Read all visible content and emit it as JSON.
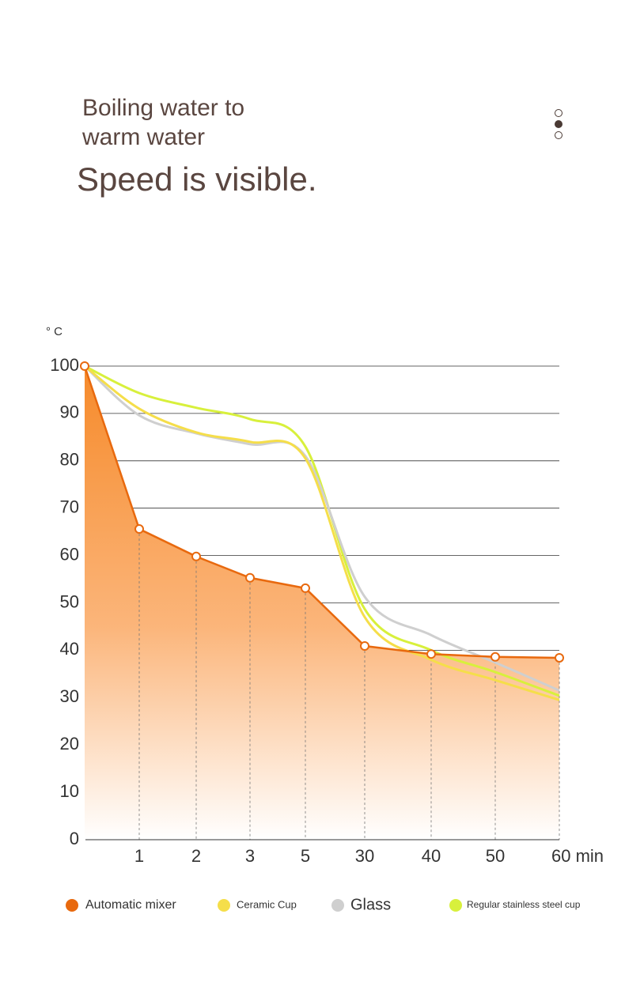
{
  "chart_data": {
    "type": "line",
    "title": "Boiling water to warm water",
    "subtitle": "Speed is visible.",
    "y_label": "° C",
    "categories": [
      null,
      "1",
      "2",
      "3",
      "5",
      "30",
      "40",
      "50",
      "60 min"
    ],
    "series": [
      {
        "name": "Automatic mixer",
        "color": "#e8690e",
        "values": [
          100,
          65.6,
          59.8,
          55.3,
          53.1,
          40.9,
          39.2,
          38.6,
          38.4
        ]
      },
      {
        "name": "Ceramic Cup",
        "color": "#f5de4a",
        "values": [
          100,
          91,
          86,
          84,
          80.5,
          47,
          38,
          33.7,
          29.5
        ]
      },
      {
        "name": "Glass",
        "color": "#cfcfcf",
        "values": [
          100,
          89.6,
          85.8,
          83.5,
          81,
          51.3,
          43.2,
          37.4,
          31.5
        ]
      },
      {
        "name": "Regular stainless steel cup",
        "color": "#d8f03c",
        "values": [
          100,
          94.3,
          91.2,
          88.8,
          83,
          48.7,
          40,
          35.4,
          30.4
        ]
      }
    ],
    "ylim": [
      0,
      100
    ],
    "yticks": [
      0,
      10,
      20,
      30,
      40,
      50,
      60,
      70,
      80,
      90,
      100
    ],
    "grid": true
  }
}
